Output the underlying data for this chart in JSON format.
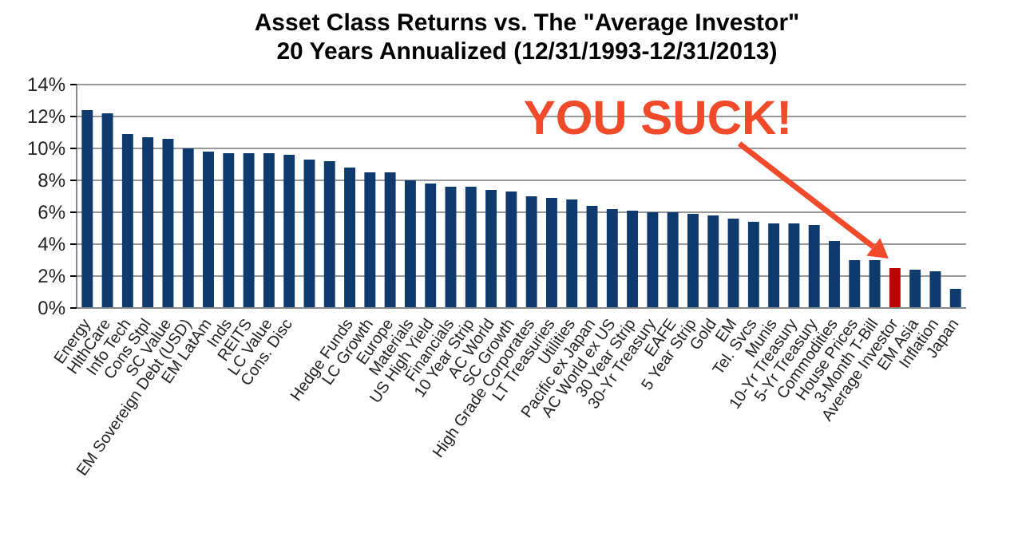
{
  "chart_data": {
    "type": "bar",
    "title": "Asset Class Returns vs. The \"Average Investor\"",
    "subtitle": "20 Years Annualized (12/31/1993-12/31/2013)",
    "categories": [
      "Energy",
      "HlthCare",
      "Info Tech",
      "Cons Stpl",
      "SC Value",
      "EM Sovereign Debt (USD)",
      "EM LatAm",
      "Inds",
      "REITS",
      "LC Value",
      "Cons. Disc",
      null,
      null,
      "Hedge Funds",
      "LC Growth",
      "Europe",
      "Materials",
      "US High Yield",
      "Financials",
      "10 Year Strip",
      "AC World",
      "SC Growth",
      "High Grade Corporates",
      "LT Treasuries",
      "Utilities",
      "Pacific ex Japan",
      "AC World ex US",
      "30 Year Strip",
      "30-Yr Treasury",
      "EAFE",
      "5 Year Strip",
      "Gold",
      "EM",
      "Tel. Svcs",
      "Munis",
      "10-Yr Treasury",
      "5-Yr Treasury",
      "Commodities",
      "House Prices",
      "3-Month T-Bill",
      "Average Investor",
      "EM Asia",
      "Inflation",
      "Japan"
    ],
    "values": [
      12.4,
      12.2,
      10.9,
      10.7,
      10.6,
      10.0,
      9.8,
      9.7,
      9.7,
      9.7,
      9.6,
      9.3,
      9.2,
      8.8,
      8.5,
      8.5,
      8.0,
      7.8,
      7.6,
      7.6,
      7.4,
      7.3,
      7.0,
      6.9,
      6.8,
      6.4,
      6.2,
      6.1,
      6.0,
      6.0,
      5.9,
      5.8,
      5.6,
      5.4,
      5.3,
      5.3,
      5.2,
      4.2,
      3.0,
      3.0,
      2.5,
      2.4,
      2.3,
      1.2
    ],
    "colors": [
      "#0e3a6e",
      "#0e3a6e",
      "#0e3a6e",
      "#0e3a6e",
      "#0e3a6e",
      "#0e3a6e",
      "#0e3a6e",
      "#0e3a6e",
      "#0e3a6e",
      "#0e3a6e",
      "#0e3a6e",
      "#0e3a6e",
      "#0e3a6e",
      "#0e3a6e",
      "#0e3a6e",
      "#0e3a6e",
      "#0e3a6e",
      "#0e3a6e",
      "#0e3a6e",
      "#0e3a6e",
      "#0e3a6e",
      "#0e3a6e",
      "#0e3a6e",
      "#0e3a6e",
      "#0e3a6e",
      "#0e3a6e",
      "#0e3a6e",
      "#0e3a6e",
      "#0e3a6e",
      "#0e3a6e",
      "#0e3a6e",
      "#0e3a6e",
      "#0e3a6e",
      "#0e3a6e",
      "#0e3a6e",
      "#0e3a6e",
      "#0e3a6e",
      "#0e3a6e",
      "#0e3a6e",
      "#0e3a6e",
      "#c00000",
      "#0e3a6e",
      "#0e3a6e",
      "#0e3a6e"
    ],
    "ylim": [
      0,
      14
    ],
    "yticks": [
      {
        "value": 0,
        "label": "0%"
      },
      {
        "value": 2,
        "label": "2%"
      },
      {
        "value": 4,
        "label": "4%"
      },
      {
        "value": 6,
        "label": "6%"
      },
      {
        "value": 8,
        "label": "8%"
      },
      {
        "value": 10,
        "label": "10%"
      },
      {
        "value": 12,
        "label": "12%"
      },
      {
        "value": 14,
        "label": "14%"
      }
    ],
    "grid": "y",
    "annotations": [
      "YOU SUCK!"
    ]
  }
}
